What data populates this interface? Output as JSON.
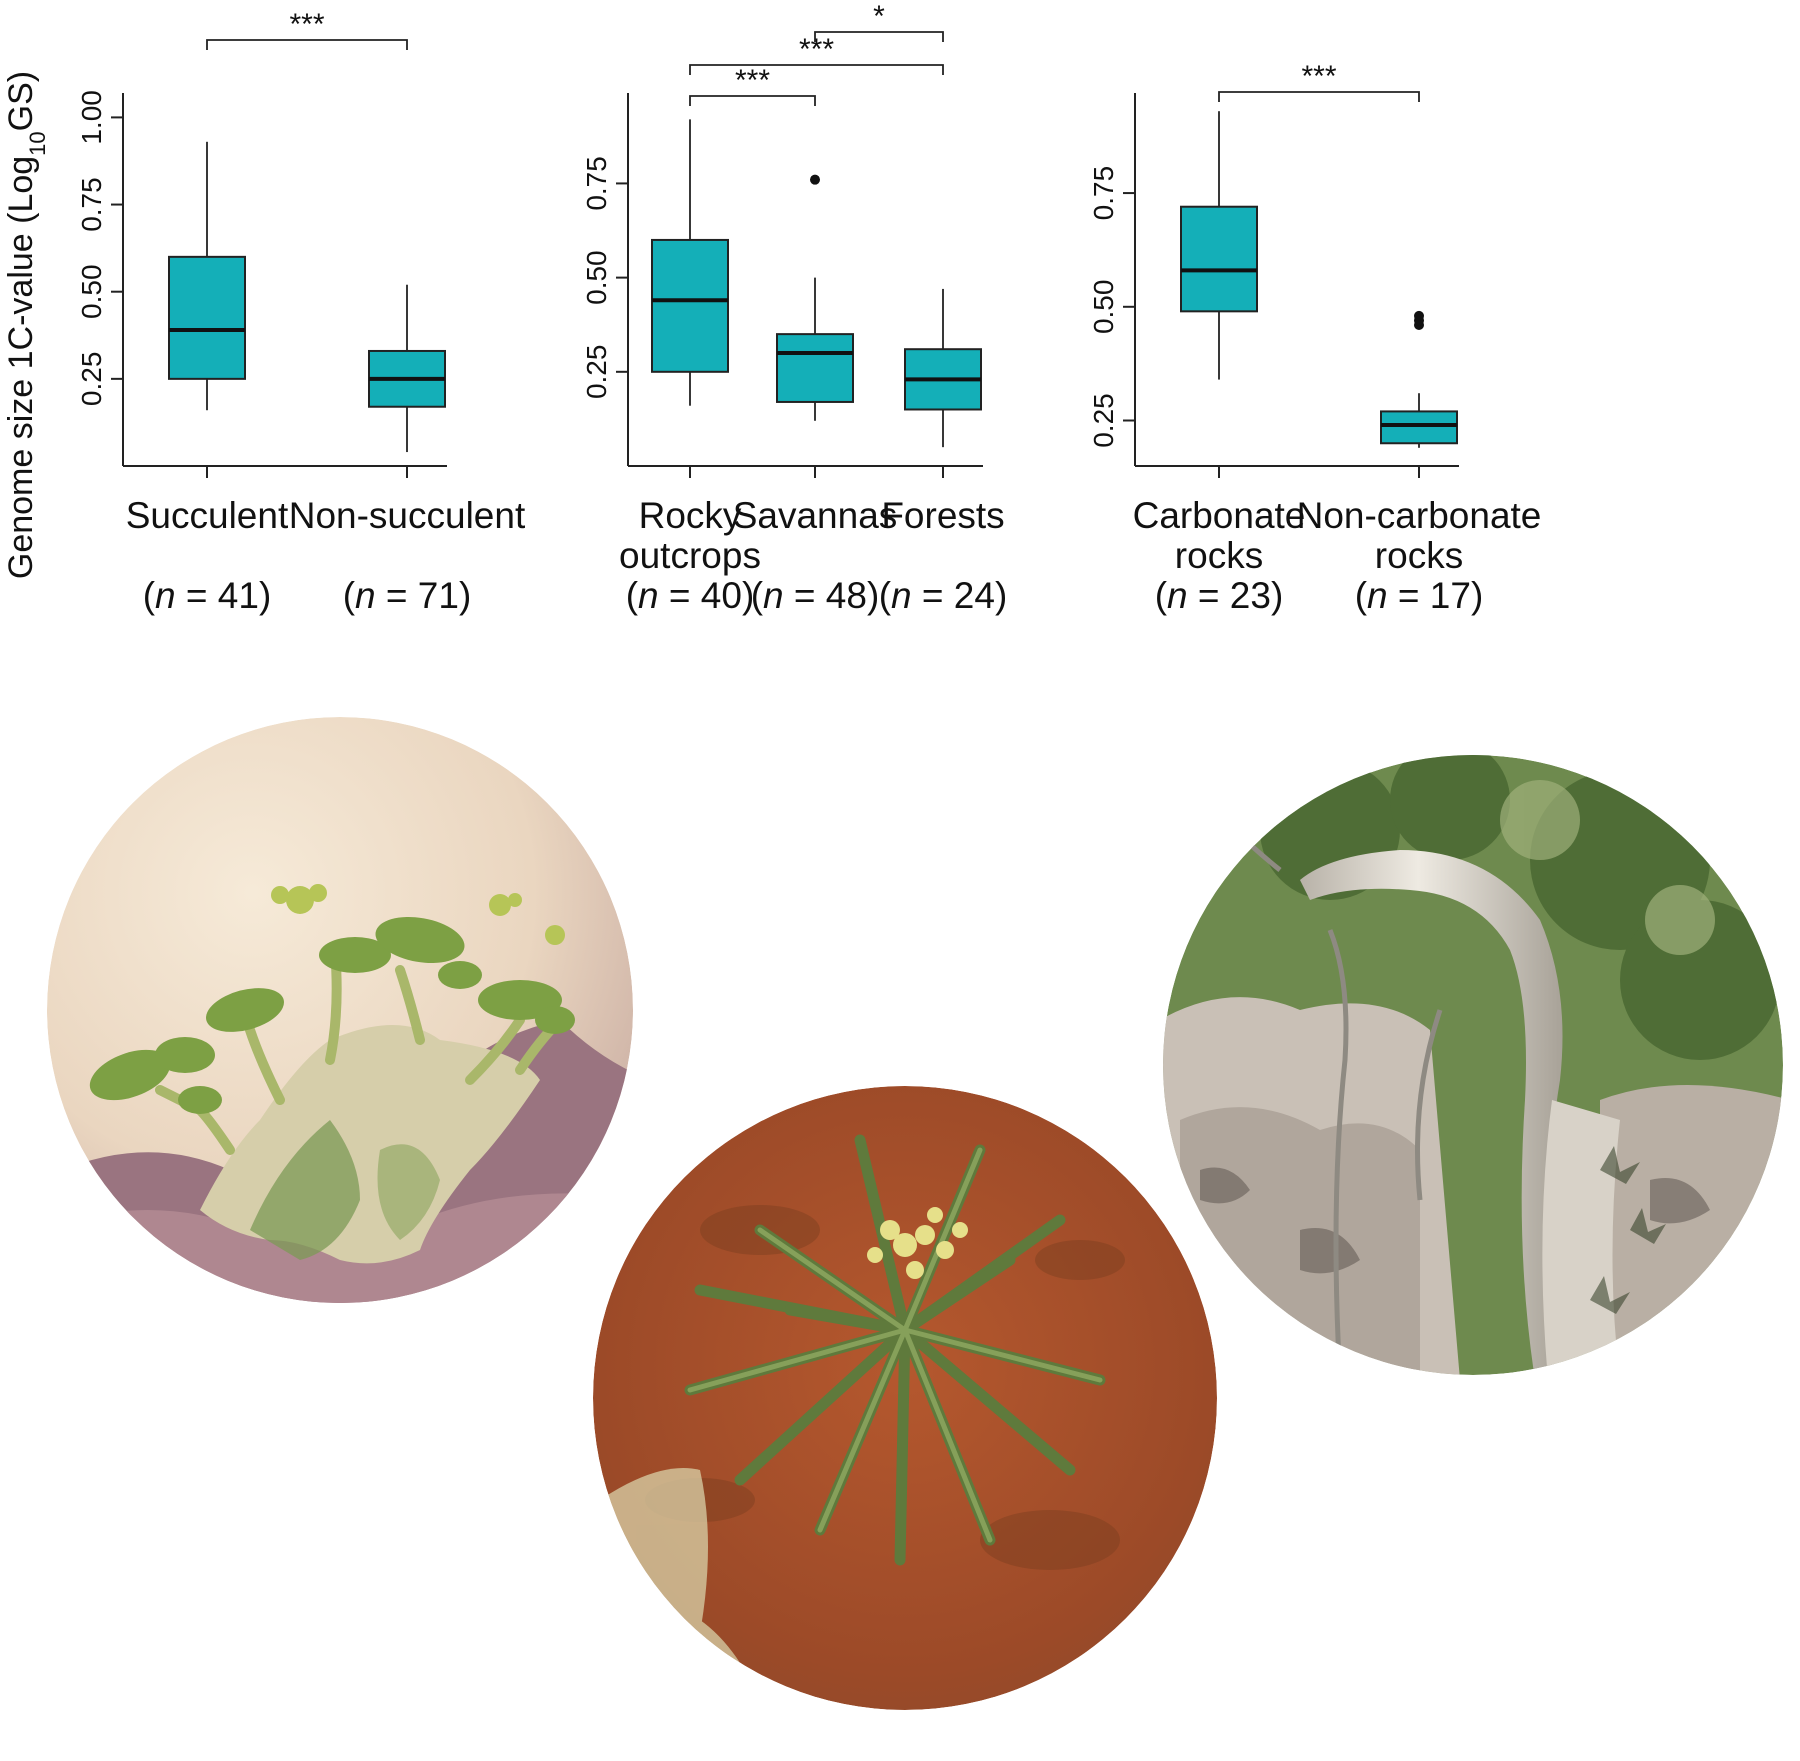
{
  "y_axis_label": {
    "prefix": "Genome size 1C-value (Log",
    "sub": "10",
    "suffix": "GS)"
  },
  "box_color": "#14afb8",
  "chart_data": [
    {
      "type": "box",
      "ylabel": "Genome size 1C-value (Log10GS)",
      "ylim": [
        0.0,
        1.07
      ],
      "yticks": [
        0.25,
        0.5,
        0.75,
        1.0
      ],
      "ytick_labels": [
        "0.25",
        "0.50",
        "0.75",
        "1.00"
      ],
      "categories": [
        {
          "lines": [
            "Succulent"
          ],
          "n_pre": "(",
          "n_var": "n",
          "n_post": " = 41)",
          "min": 0.16,
          "q1": 0.25,
          "median": 0.39,
          "q3": 0.6,
          "max": 0.93,
          "outliers": []
        },
        {
          "lines": [
            "Non-succulent"
          ],
          "n_pre": "(",
          "n_var": "n",
          "n_post": " = 71)",
          "min": 0.04,
          "q1": 0.17,
          "median": 0.25,
          "q3": 0.33,
          "max": 0.52,
          "outliers": []
        }
      ],
      "comparisons": [
        {
          "from": 0,
          "to": 1,
          "label": "***"
        }
      ]
    },
    {
      "type": "box",
      "ylim": [
        0.0,
        0.99
      ],
      "yticks": [
        0.25,
        0.5,
        0.75
      ],
      "ytick_labels": [
        "0.25",
        "0.50",
        "0.75"
      ],
      "categories": [
        {
          "lines": [
            "Rocky",
            "outcrops"
          ],
          "n_pre": "(",
          "n_var": "n",
          "n_post": " = 40)",
          "min": 0.16,
          "q1": 0.25,
          "median": 0.44,
          "q3": 0.6,
          "max": 0.92,
          "outliers": []
        },
        {
          "lines": [
            "Savannas"
          ],
          "n_pre": "(",
          "n_var": "n",
          "n_post": " = 48)",
          "min": 0.12,
          "q1": 0.17,
          "median": 0.3,
          "q3": 0.35,
          "max": 0.5,
          "outliers": [
            0.76
          ]
        },
        {
          "lines": [
            "Forests"
          ],
          "n_pre": "(",
          "n_var": "n",
          "n_post": " = 24)",
          "min": 0.05,
          "q1": 0.15,
          "median": 0.23,
          "q3": 0.31,
          "max": 0.47,
          "outliers": []
        }
      ],
      "comparisons": [
        {
          "from": 0,
          "to": 1,
          "label": "***"
        },
        {
          "from": 0,
          "to": 2,
          "label": "***"
        },
        {
          "from": 1,
          "to": 2,
          "label": "*"
        }
      ]
    },
    {
      "type": "box",
      "ylim": [
        0.15,
        0.97
      ],
      "yticks": [
        0.25,
        0.5,
        0.75
      ],
      "ytick_labels": [
        "0.25",
        "0.50",
        "0.75"
      ],
      "categories": [
        {
          "lines": [
            "Carbonate",
            "rocks"
          ],
          "n_pre": "(",
          "n_var": "n",
          "n_post": " = 23)",
          "min": 0.34,
          "q1": 0.49,
          "median": 0.58,
          "q3": 0.72,
          "max": 0.93,
          "outliers": []
        },
        {
          "lines": [
            "Non-carbonate",
            "rocks"
          ],
          "n_pre": "(",
          "n_var": "n",
          "n_post": " = 17)",
          "min": 0.19,
          "q1": 0.2,
          "median": 0.24,
          "q3": 0.27,
          "max": 0.31,
          "outliers": [
            0.46,
            0.47,
            0.48
          ]
        }
      ],
      "comparisons": [
        {
          "from": 0,
          "to": 1,
          "label": "***"
        }
      ]
    }
  ]
}
